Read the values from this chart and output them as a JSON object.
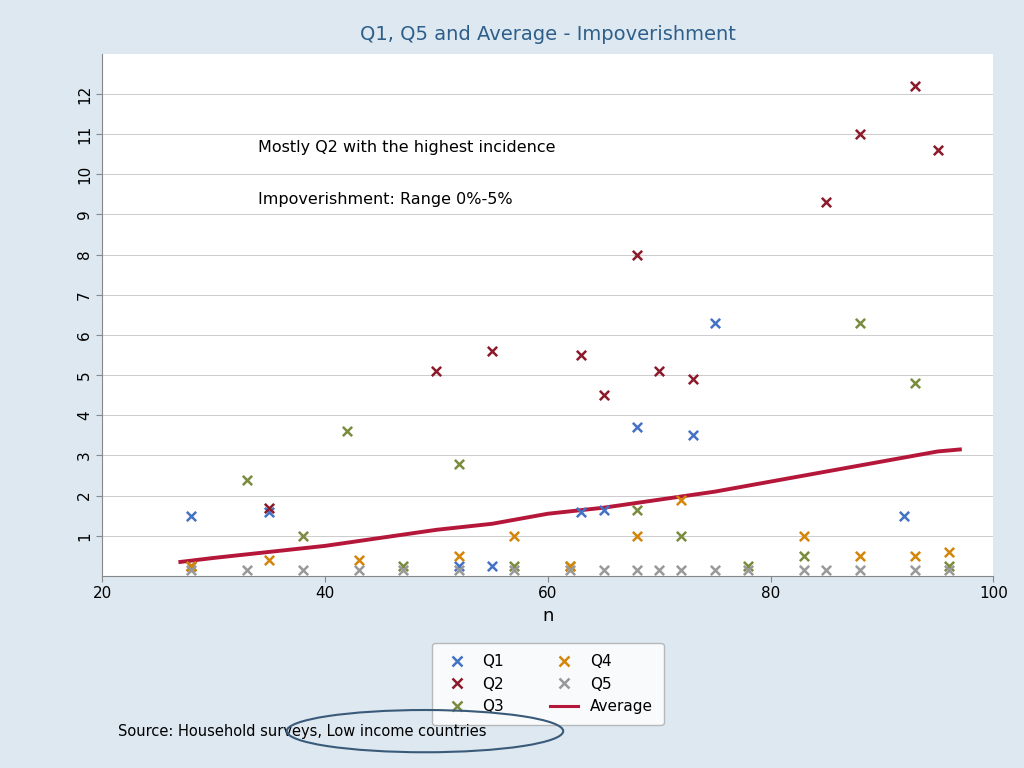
{
  "title": "Q1, Q5 and Average - Impoverishment",
  "xlabel": "n",
  "xlim": [
    20,
    100
  ],
  "ylim": [
    0,
    13
  ],
  "yticks": [
    1,
    2,
    3,
    4,
    5,
    6,
    7,
    8,
    9,
    10,
    11,
    12
  ],
  "xticks": [
    20,
    40,
    60,
    80,
    100
  ],
  "annotation1": "Mostly Q2 with the highest incidence",
  "annotation2": "Impoverishment: Range 0%-5%",
  "source_text": "Source: Household surveys, Low income countries",
  "source_plain": "Source: Household surveys,",
  "source_circled": " Low income countries",
  "bg_color": "#dde8f0",
  "plot_bg_color": "#ffffff",
  "avg_color": "#b5173a",
  "q1_color": "#4472c4",
  "q2_color": "#8b1a2a",
  "q3_color": "#7a8c3e",
  "q4_color": "#d4860a",
  "q5_color": "#999999",
  "Q1": {
    "x": [
      28,
      35,
      52,
      55,
      63,
      65,
      68,
      73,
      75,
      92
    ],
    "y": [
      1.5,
      1.6,
      0.25,
      0.25,
      1.6,
      1.65,
      3.7,
      3.5,
      6.3,
      1.5
    ]
  },
  "Q2": {
    "x": [
      28,
      35,
      50,
      55,
      63,
      65,
      68,
      70,
      73,
      85,
      88,
      93,
      95
    ],
    "y": [
      0.25,
      1.7,
      5.1,
      5.6,
      5.5,
      4.5,
      8.0,
      5.1,
      4.9,
      9.3,
      11.0,
      12.2,
      10.6
    ]
  },
  "Q3": {
    "x": [
      28,
      33,
      38,
      42,
      47,
      52,
      57,
      62,
      68,
      72,
      78,
      83,
      88,
      93,
      96
    ],
    "y": [
      0.25,
      2.4,
      1.0,
      3.6,
      0.25,
      2.8,
      0.25,
      0.25,
      1.65,
      1.0,
      0.25,
      0.5,
      6.3,
      4.8,
      0.25
    ]
  },
  "Q4": {
    "x": [
      28,
      35,
      43,
      52,
      57,
      62,
      68,
      72,
      83,
      88,
      93,
      96
    ],
    "y": [
      0.25,
      0.4,
      0.4,
      0.5,
      1.0,
      0.25,
      1.0,
      1.9,
      1.0,
      0.5,
      0.5,
      0.6
    ]
  },
  "Q5": {
    "x": [
      28,
      33,
      38,
      43,
      47,
      52,
      57,
      62,
      65,
      68,
      70,
      72,
      75,
      78,
      83,
      85,
      88,
      93,
      96
    ],
    "y": [
      0.15,
      0.15,
      0.15,
      0.15,
      0.15,
      0.15,
      0.15,
      0.15,
      0.15,
      0.15,
      0.15,
      0.15,
      0.15,
      0.15,
      0.15,
      0.15,
      0.15,
      0.15,
      0.15
    ]
  },
  "avg_line": {
    "x": [
      27,
      30,
      35,
      40,
      45,
      50,
      55,
      60,
      65,
      70,
      75,
      80,
      85,
      90,
      95,
      97
    ],
    "y": [
      0.35,
      0.45,
      0.6,
      0.75,
      0.95,
      1.15,
      1.3,
      1.55,
      1.7,
      1.9,
      2.1,
      2.35,
      2.6,
      2.85,
      3.1,
      3.15
    ]
  }
}
